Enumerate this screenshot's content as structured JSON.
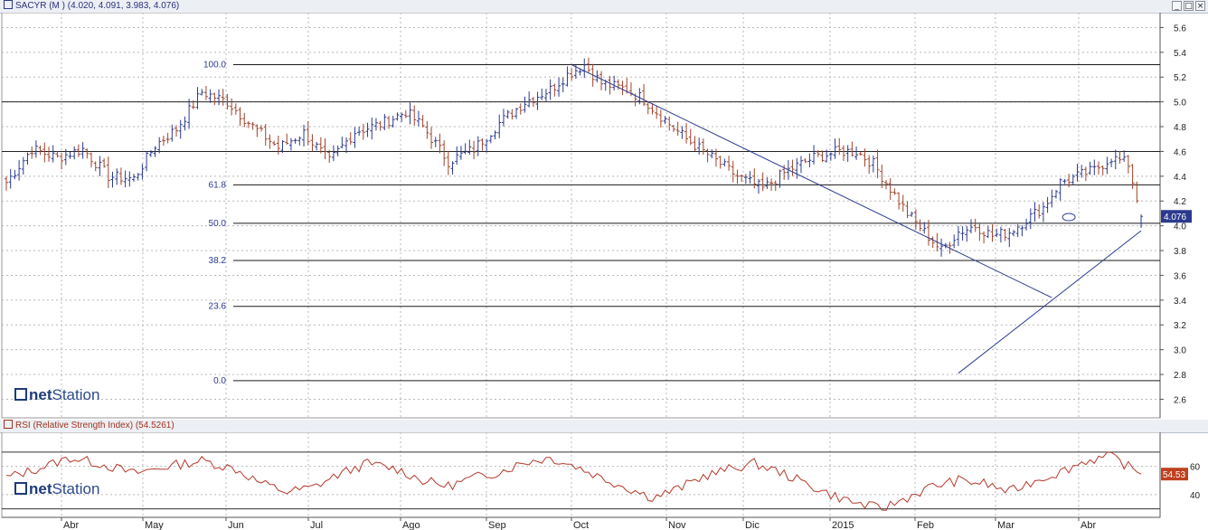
{
  "main_panel": {
    "title": "SACYR (M ) (4.020, 4.091, 3.983, 4.076)",
    "last_price_label": "4.076",
    "logo_text_net": "net",
    "logo_text_station": "Station",
    "icons": [
      "chart-logo-icon",
      "minimize-icon",
      "maximize-icon",
      "close-icon"
    ],
    "window_buttons": [
      "_",
      "□",
      "×"
    ]
  },
  "rsi_panel": {
    "title": "RSI (Relative Strength Index) (54.5261)",
    "last_value_label": "54.53",
    "logo_text_net": "net",
    "logo_text_station": "Station"
  },
  "colors": {
    "up_bar": "#2b3a8f",
    "down_bar": "#a0432a",
    "trendline": "#2b3a8f",
    "fib_line": "#1a1a1a",
    "rsi_line": "#b5382a",
    "rsi_badge": "#c0401f",
    "price_badge": "#2b3a8f",
    "grid": "#b8b8b8"
  },
  "chart_data": [
    {
      "type": "ohlc",
      "title": "SACYR (M ) (4.020, 4.091, 3.983, 4.076)",
      "last_ohlc": {
        "open": 4.02,
        "high": 4.091,
        "low": 3.983,
        "close": 4.076
      },
      "ylim": [
        2.45,
        5.72
      ],
      "y_ticks": [
        "2.6",
        "2.8",
        "3.0",
        "3.2",
        "3.4",
        "3.6",
        "3.8",
        "4.0",
        "4.2",
        "4.4",
        "4.6",
        "4.8",
        "5.0",
        "5.2",
        "5.4",
        "5.6"
      ],
      "x_ticks": [
        "Abr",
        "May",
        "Jun",
        "Jul",
        "Ago",
        "Sep",
        "Oct",
        "Nov",
        "Dic",
        "2015",
        "Feb",
        "Mar",
        "Abr"
      ],
      "grid": true,
      "n_bars": 268,
      "close_anchors": [
        [
          0,
          4.35
        ],
        [
          6,
          4.62
        ],
        [
          12,
          4.55
        ],
        [
          18,
          4.62
        ],
        [
          24,
          4.4
        ],
        [
          30,
          4.38
        ],
        [
          35,
          4.65
        ],
        [
          40,
          4.78
        ],
        [
          46,
          5.08
        ],
        [
          52,
          5.0
        ],
        [
          58,
          4.8
        ],
        [
          64,
          4.63
        ],
        [
          70,
          4.75
        ],
        [
          76,
          4.52
        ],
        [
          82,
          4.76
        ],
        [
          88,
          4.82
        ],
        [
          94,
          4.92
        ],
        [
          98,
          4.8
        ],
        [
          104,
          4.52
        ],
        [
          110,
          4.62
        ],
        [
          116,
          4.83
        ],
        [
          122,
          5.0
        ],
        [
          128,
          5.1
        ],
        [
          132,
          5.22
        ],
        [
          134,
          5.26
        ],
        [
          136,
          5.3
        ],
        [
          140,
          5.15
        ],
        [
          146,
          5.1
        ],
        [
          150,
          5.02
        ],
        [
          156,
          4.82
        ],
        [
          160,
          4.7
        ],
        [
          166,
          4.55
        ],
        [
          172,
          4.4
        ],
        [
          178,
          4.3
        ],
        [
          184,
          4.45
        ],
        [
          190,
          4.55
        ],
        [
          196,
          4.6
        ],
        [
          200,
          4.6
        ],
        [
          204,
          4.5
        ],
        [
          208,
          4.3
        ],
        [
          212,
          4.1
        ],
        [
          216,
          3.95
        ],
        [
          220,
          3.8
        ],
        [
          224,
          3.95
        ],
        [
          228,
          4.0
        ],
        [
          232,
          3.92
        ],
        [
          236,
          3.95
        ],
        [
          240,
          4.05
        ],
        [
          244,
          4.15
        ],
        [
          248,
          4.35
        ],
        [
          252,
          4.4
        ],
        [
          256,
          4.45
        ],
        [
          260,
          4.55
        ],
        [
          264,
          4.5
        ],
        [
          267,
          4.076
        ]
      ],
      "fibonacci_levels": [
        {
          "label": "100.0",
          "value": 5.3
        },
        {
          "label": "61.8",
          "value": 4.33
        },
        {
          "label": "50.0",
          "value": 4.02
        },
        {
          "label": "38.2",
          "value": 3.72
        },
        {
          "label": "23.6",
          "value": 3.35
        },
        {
          "label": "0.0",
          "value": 2.75
        }
      ],
      "horizontal_lines": [
        5.0,
        4.6
      ],
      "trendlines": [
        {
          "from": {
            "bar": 133,
            "y": 5.3
          },
          "to": {
            "bar": 246,
            "y": 3.42
          }
        },
        {
          "from": {
            "bar": 224,
            "y": 2.81
          },
          "to": {
            "bar": 267,
            "y": 3.96
          }
        }
      ]
    },
    {
      "type": "line",
      "title": "RSI (Relative Strength Index) (54.5261)",
      "series": [
        {
          "name": "RSI (Relative Strength Index)",
          "last_value": 54.5261,
          "x": [
            0,
            7,
            15,
            22,
            30,
            38,
            46,
            54,
            60,
            66,
            72,
            78,
            85,
            92,
            98,
            104,
            110,
            116,
            122,
            128,
            134,
            140,
            146,
            152,
            158,
            164,
            170,
            176,
            182,
            188,
            194,
            200,
            206,
            212,
            218,
            224,
            230,
            236,
            242,
            248,
            254,
            260,
            267
          ],
          "values": [
            52,
            58,
            66,
            62,
            55,
            60,
            64,
            58,
            48,
            42,
            45,
            54,
            62,
            58,
            50,
            46,
            52,
            56,
            63,
            66,
            60,
            52,
            45,
            38,
            44,
            53,
            58,
            62,
            56,
            48,
            40,
            34,
            30,
            38,
            46,
            50,
            48,
            42,
            50,
            56,
            64,
            67,
            54.5
          ]
        }
      ],
      "ylim": [
        24,
        84
      ],
      "y_ticks": [
        "40",
        "60"
      ],
      "reference_levels": [
        70,
        30
      ],
      "x_ticks": [
        "Abr",
        "May",
        "Jun",
        "Jul",
        "Ago",
        "Sep",
        "Oct",
        "Nov",
        "Dic",
        "2015",
        "Feb",
        "Mar",
        "Abr"
      ],
      "grid": true
    }
  ]
}
